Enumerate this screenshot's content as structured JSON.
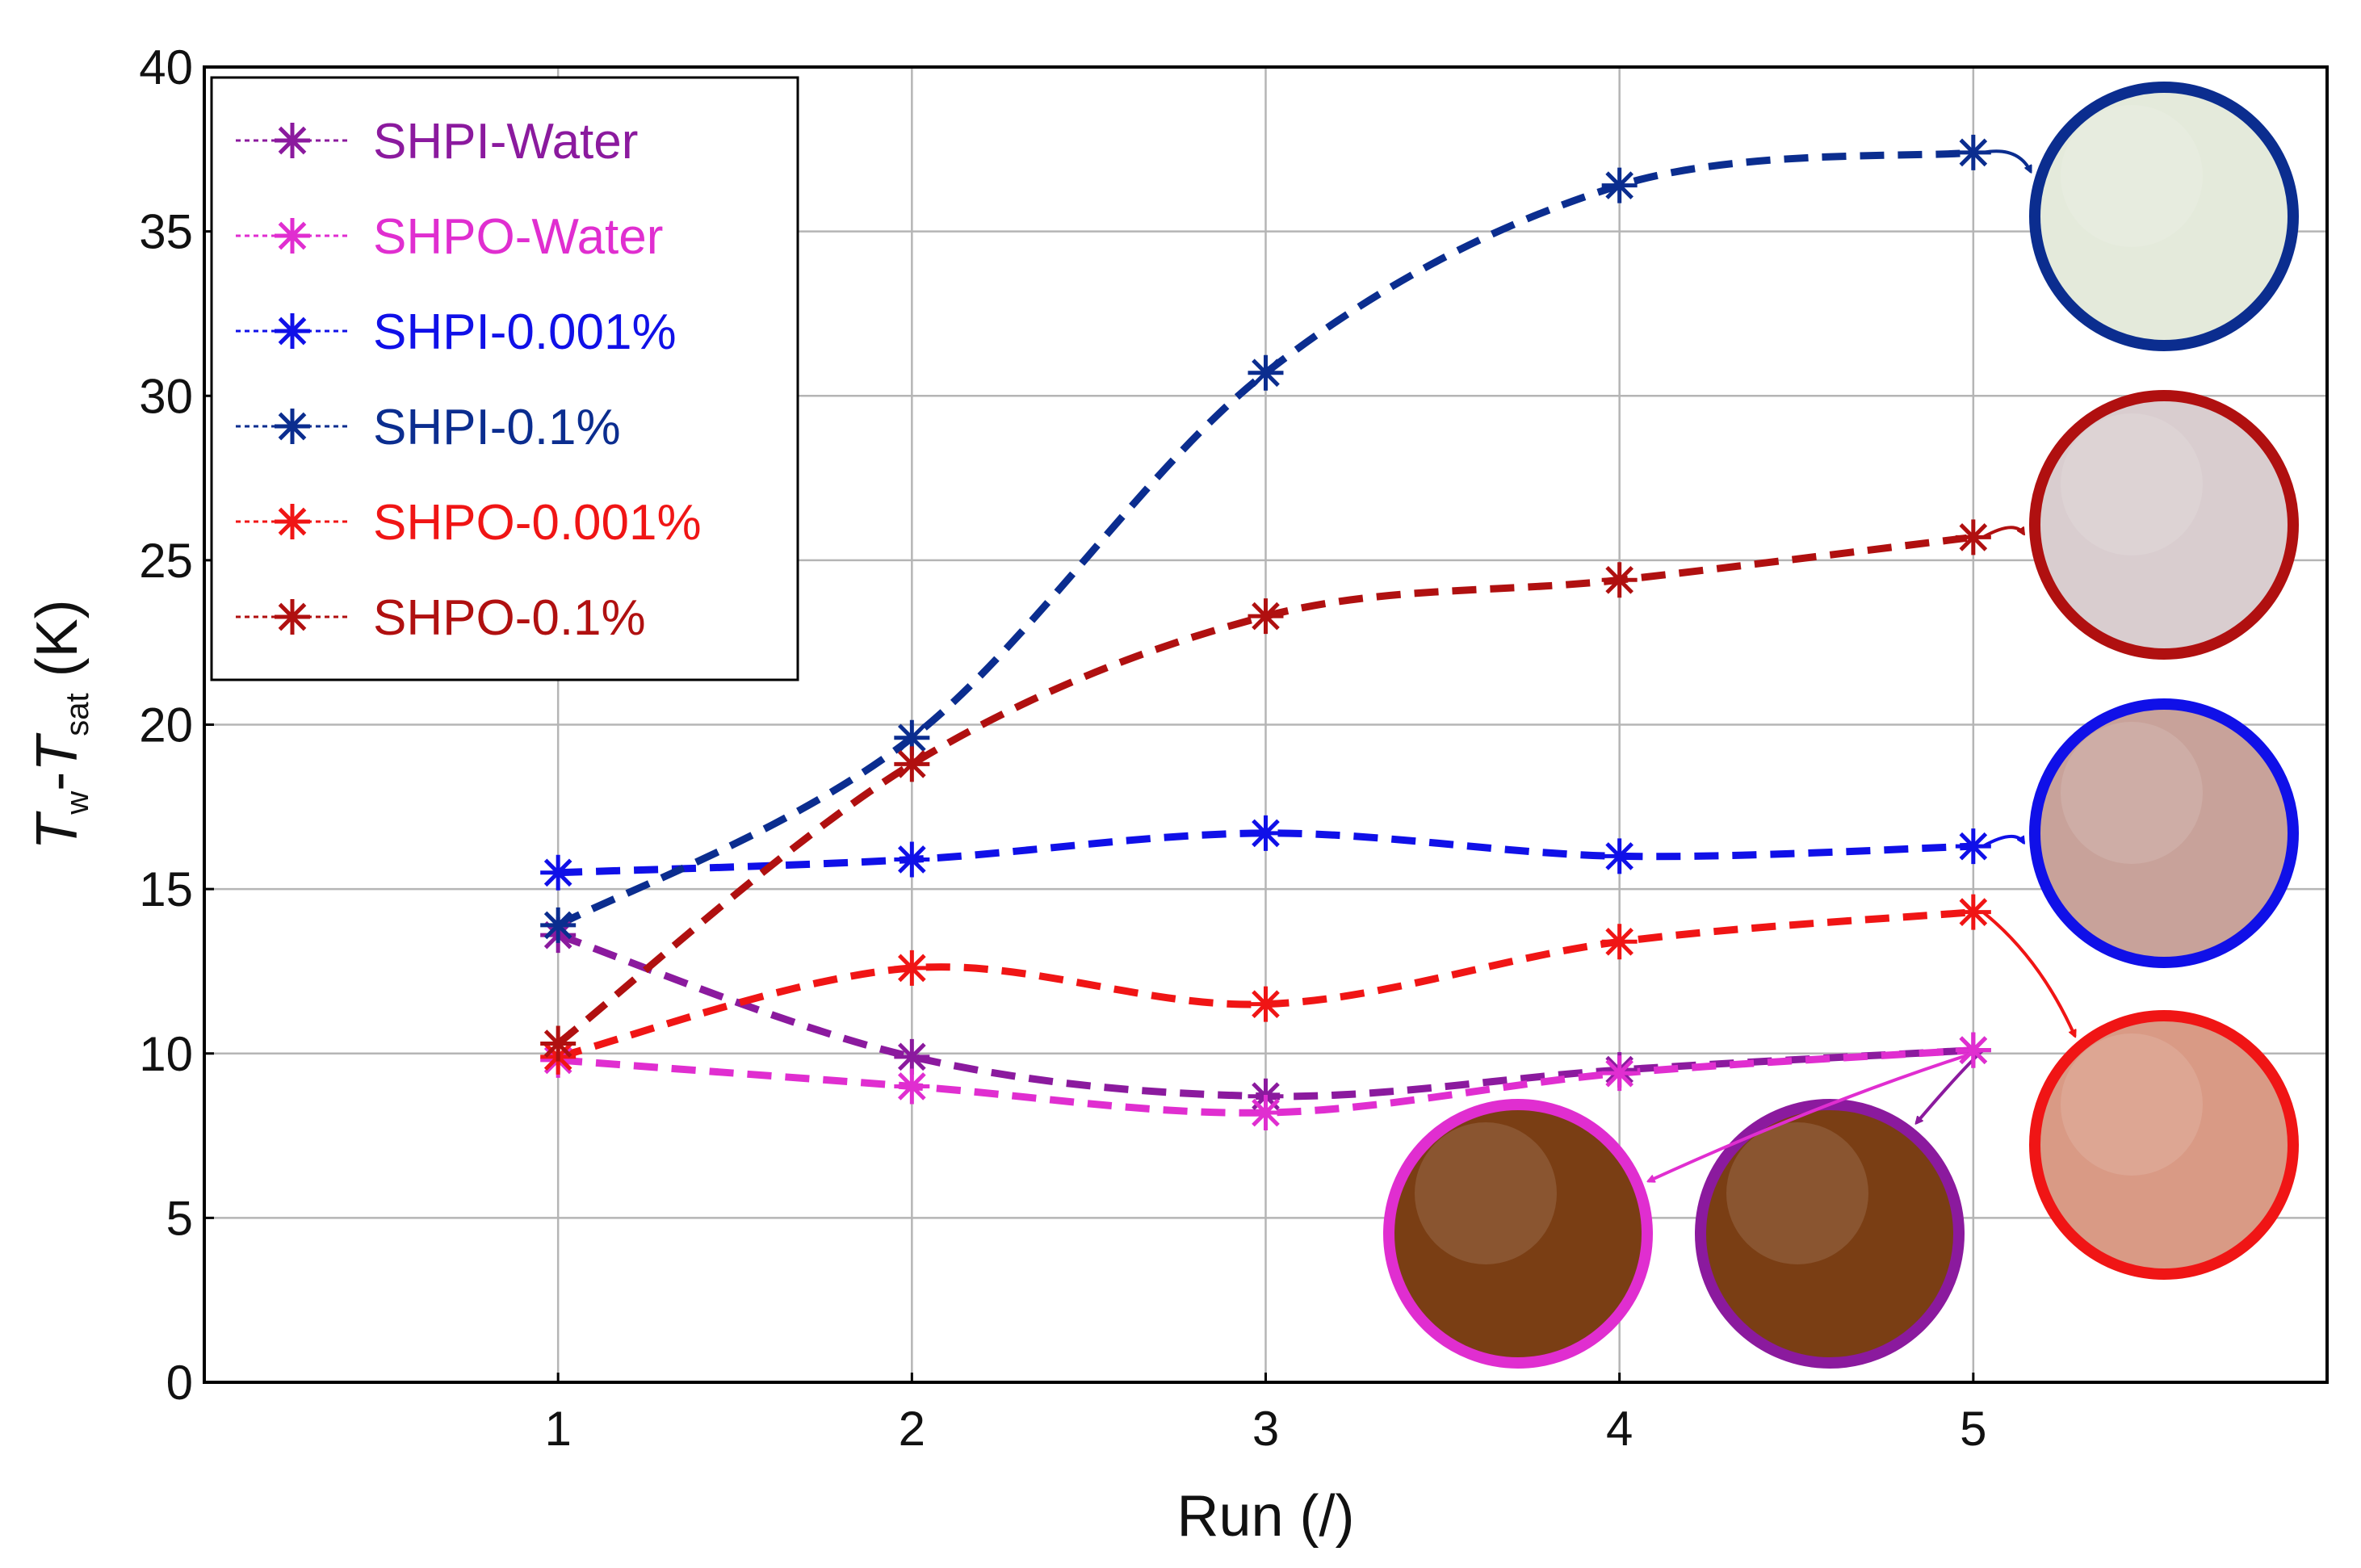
{
  "chart_data": {
    "type": "line",
    "title": "",
    "xlabel": "Run (/)",
    "ylabel": {
      "T1": "T",
      "sub1": "w",
      "dash": "-",
      "T2": "T",
      "sub2": "sat",
      "unit": " (K)"
    },
    "x": [
      1,
      2,
      3,
      4,
      5
    ],
    "xticks": [
      "1",
      "2",
      "3",
      "4",
      "5"
    ],
    "xlim": [
      0,
      6
    ],
    "ylim": [
      0,
      40
    ],
    "yticks": [
      "0",
      "5",
      "10",
      "15",
      "20",
      "25",
      "30",
      "35",
      "40"
    ],
    "grid": true,
    "legend_position": "top-left",
    "series": [
      {
        "name": "SHPI-Water",
        "color": "#8b1a9e",
        "values": [
          13.6,
          9.9,
          8.7,
          9.5,
          10.1
        ],
        "photo": {
          "fill": "#7a3e14",
          "border": "#8b1a9e"
        }
      },
      {
        "name": "SHPO-Water",
        "color": "#e02ed0",
        "values": [
          9.8,
          9.0,
          8.2,
          9.4,
          10.1
        ],
        "photo": {
          "fill": "#7a3e14",
          "border": "#e02ed0"
        }
      },
      {
        "name": "SHPI-0.001%",
        "color": "#1010e8",
        "values": [
          15.5,
          15.9,
          16.7,
          16.0,
          16.3
        ],
        "photo": {
          "fill": "#c8a29a",
          "border": "#1010e8"
        }
      },
      {
        "name": "SHPI-0.1%",
        "color": "#0b2d8f",
        "values": [
          13.9,
          19.6,
          30.7,
          36.4,
          37.4
        ],
        "photo": {
          "fill": "#e4eadb",
          "border": "#0b2d8f"
        }
      },
      {
        "name": "SHPO-0.001%",
        "color": "#f01515",
        "values": [
          9.9,
          12.6,
          11.5,
          13.4,
          14.3
        ],
        "photo": {
          "fill": "#d99a85",
          "border": "#f01515"
        }
      },
      {
        "name": "SHPO-0.1%",
        "color": "#b01010",
        "values": [
          10.3,
          18.8,
          23.3,
          24.4,
          25.7
        ],
        "photo": {
          "fill": "#d9cdcf",
          "border": "#b01010"
        }
      }
    ]
  }
}
